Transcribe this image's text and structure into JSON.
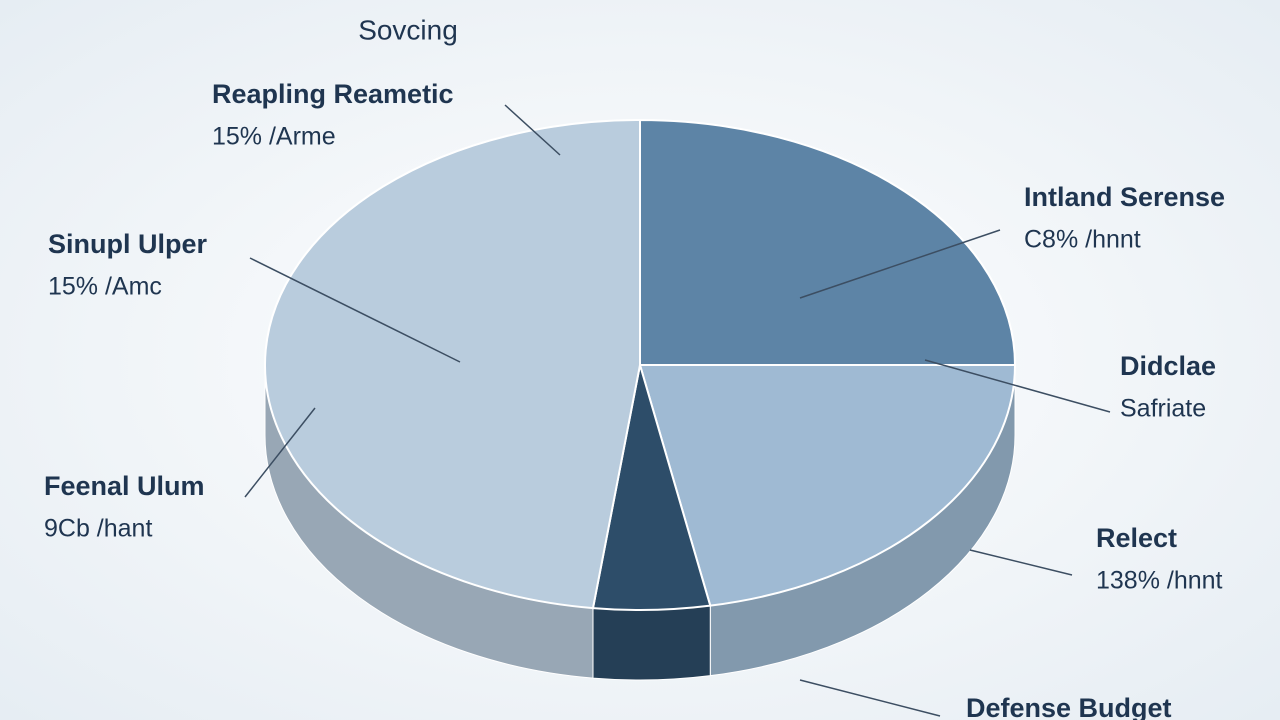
{
  "chart_data": {
    "type": "pie",
    "title": "Sovcing",
    "values": [
      25,
      22,
      5,
      48
    ],
    "colors": [
      "#5d84a6",
      "#9fbad3",
      "#2d4d69",
      "#b9ccdd"
    ],
    "annotations": [
      {
        "title": "Reapling Reametic",
        "subtitle": "15% /Arme"
      },
      {
        "title": "Sinupl Ulper",
        "subtitle": "15% /Amc"
      },
      {
        "title": "Feenal Ulum",
        "subtitle": "9Cb /hant"
      },
      {
        "title": "Intland Serense",
        "subtitle": "C8% /hnnt"
      },
      {
        "title": "Didclae",
        "subtitle": "Safriate"
      },
      {
        "title": "Relect",
        "subtitle": "138% /hnnt"
      },
      {
        "title": "Defense Budget"
      }
    ]
  }
}
